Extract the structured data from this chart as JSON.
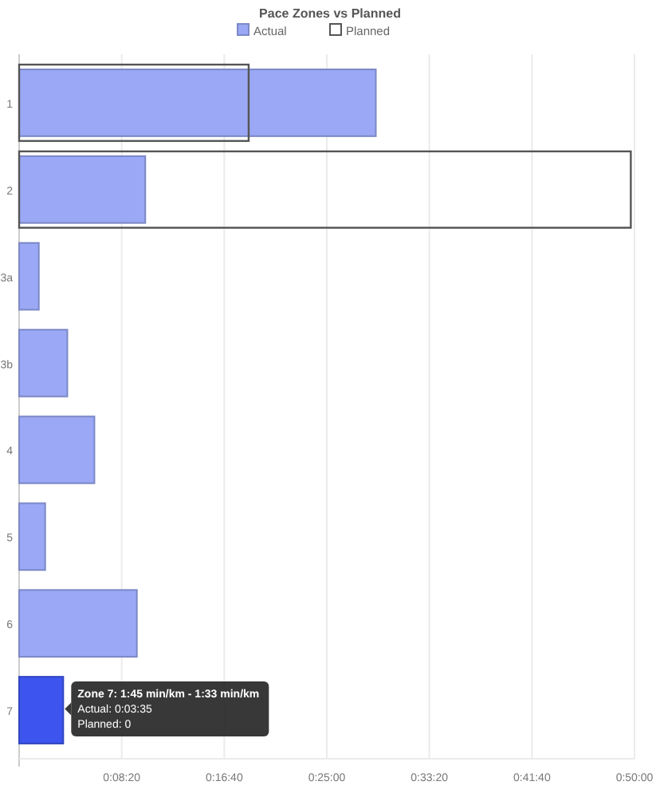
{
  "chart_data": {
    "type": "bar",
    "orientation": "horizontal",
    "title": "Pace Zones vs Planned",
    "categories": [
      "1",
      "2",
      "3a",
      "3b",
      "4",
      "5",
      "6",
      "7"
    ],
    "series": [
      {
        "name": "Actual",
        "color": "#9aa8f5",
        "colors": [
          "#9aa8f5",
          "#9aa8f5",
          "#9aa8f5",
          "#9aa8f5",
          "#9aa8f5",
          "#9aa8f5",
          "#9aa8f5",
          "#3d55ee"
        ],
        "values": [
          1739,
          615,
          96,
          235,
          367,
          127,
          574,
          215
        ]
      },
      {
        "name": "Planned",
        "color": "#555555",
        "values": [
          1119,
          2982,
          0,
          0,
          0,
          0,
          0,
          0
        ]
      }
    ],
    "xlim": [
      0,
      3000
    ],
    "xticks": [
      {
        "value": 500,
        "label": "0:08:20"
      },
      {
        "value": 1000,
        "label": "0:16:40"
      },
      {
        "value": 1500,
        "label": "0:25:00"
      },
      {
        "value": 2000,
        "label": "0:33:20"
      },
      {
        "value": 2500,
        "label": "0:41:40"
      },
      {
        "value": 3000,
        "label": "0:50:00"
      }
    ],
    "grid": "x",
    "legend": "top",
    "annotations": [
      {
        "text": "Zone 7: 1:45 min/km - 1:33 min/km\nActual: 0:03:35\nPlanned: 0",
        "x": 215,
        "y": "7"
      }
    ]
  }
}
